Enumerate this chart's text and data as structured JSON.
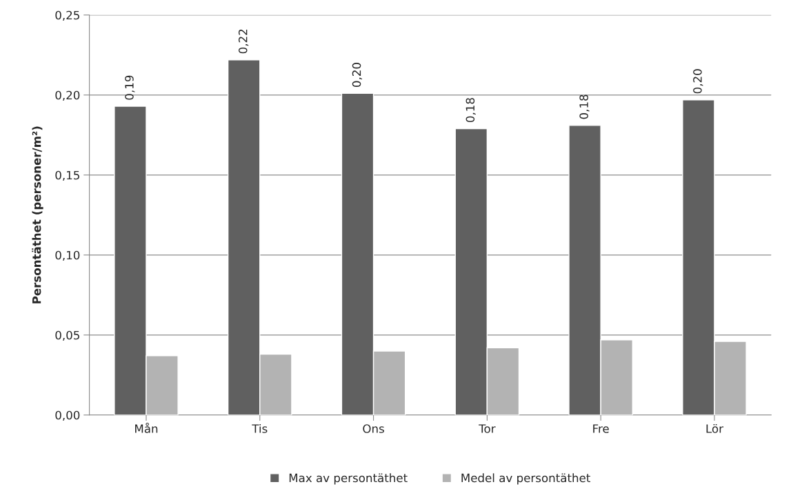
{
  "chart_data": {
    "type": "bar",
    "ylabel": "Persontäthet (personer/m²)",
    "categories": [
      "Mån",
      "Tis",
      "Ons",
      "Tor",
      "Fre",
      "Lör"
    ],
    "series": [
      {
        "name": "Max av persontäthet",
        "color": "#606060",
        "values": [
          0.193,
          0.222,
          0.201,
          0.179,
          0.181,
          0.197
        ],
        "value_labels": [
          "0,19",
          "0,22",
          "0,20",
          "0,18",
          "0,18",
          "0,20"
        ]
      },
      {
        "name": "Medel av persontäthet",
        "color": "#b3b3b3",
        "values": [
          0.037,
          0.038,
          0.04,
          0.042,
          0.047,
          0.046
        ]
      }
    ],
    "ylim": [
      0,
      0.25
    ],
    "yticks": [
      {
        "value": 0,
        "label": "0,00"
      },
      {
        "value": 0.05,
        "label": "0,05"
      },
      {
        "value": 0.1,
        "label": "0,10"
      },
      {
        "value": 0.15,
        "label": "0,15"
      },
      {
        "value": 0.2,
        "label": "0,20"
      },
      {
        "value": 0.25,
        "label": "0,25"
      }
    ],
    "grid": "y",
    "legend": "bottom"
  }
}
